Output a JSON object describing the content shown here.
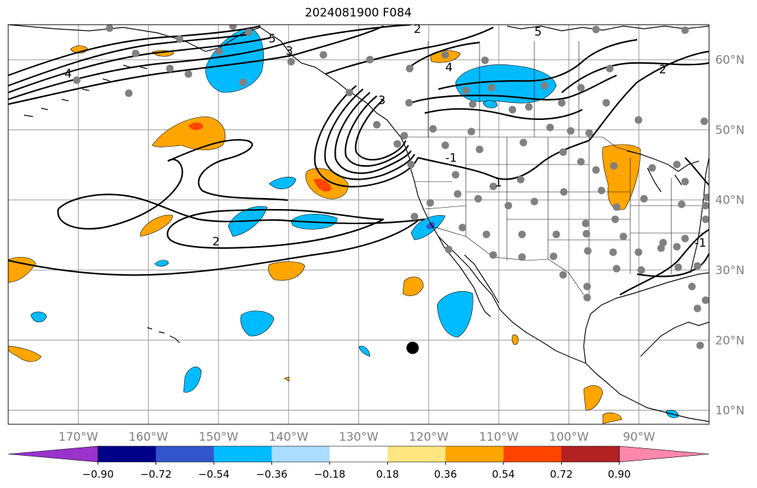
{
  "title": "2024081900 F084",
  "chart_data": {
    "type": "map",
    "title": "2024081900 F084",
    "lon_ticks": [
      {
        "lon": -170,
        "label": "170°W"
      },
      {
        "lon": -160,
        "label": "160°W"
      },
      {
        "lon": -150,
        "label": "150°W"
      },
      {
        "lon": -140,
        "label": "140°W"
      },
      {
        "lon": -130,
        "label": "130°W"
      },
      {
        "lon": -120,
        "label": "120°W"
      },
      {
        "lon": -110,
        "label": "110°W"
      },
      {
        "lon": -100,
        "label": "100°W"
      },
      {
        "lon": -90,
        "label": "90°W"
      }
    ],
    "lat_ticks": [
      {
        "lat": 10,
        "label": "10°N"
      },
      {
        "lat": 20,
        "label": "20°N"
      },
      {
        "lat": 30,
        "label": "30°N"
      },
      {
        "lat": 40,
        "label": "40°N"
      },
      {
        "lat": 50,
        "label": "50°N"
      },
      {
        "lat": 60,
        "label": "60°N"
      }
    ],
    "extent": {
      "lon": [
        -180,
        -80
      ],
      "lat": [
        8,
        65
      ]
    },
    "gridlines": true,
    "colorbar": {
      "orientation": "horizontal",
      "extend": "both",
      "bounds": [
        -0.9,
        -0.72,
        -0.54,
        -0.36,
        -0.18,
        0.18,
        0.36,
        0.54,
        0.72,
        0.9
      ],
      "tick_labels": [
        "−0.90",
        "−0.72",
        "−0.54",
        "−0.36",
        "−0.18",
        "0.18",
        "0.36",
        "0.54",
        "0.72",
        "0.90"
      ],
      "colors": [
        "#9933cc",
        "#000088",
        "#3355cc",
        "#00bbff",
        "#aaddff",
        "#ffffff",
        "#ffe680",
        "#ffa500",
        "#ff4400",
        "#b22222",
        "#ff88aa"
      ]
    },
    "contour_labels": [
      "2",
      "2",
      "2",
      "3",
      "3",
      "4",
      "4",
      "5",
      "5",
      "-1",
      "-1",
      "1"
    ],
    "marker": {
      "lon": -122.3,
      "lat": 18.9,
      "color": "#000000"
    }
  }
}
